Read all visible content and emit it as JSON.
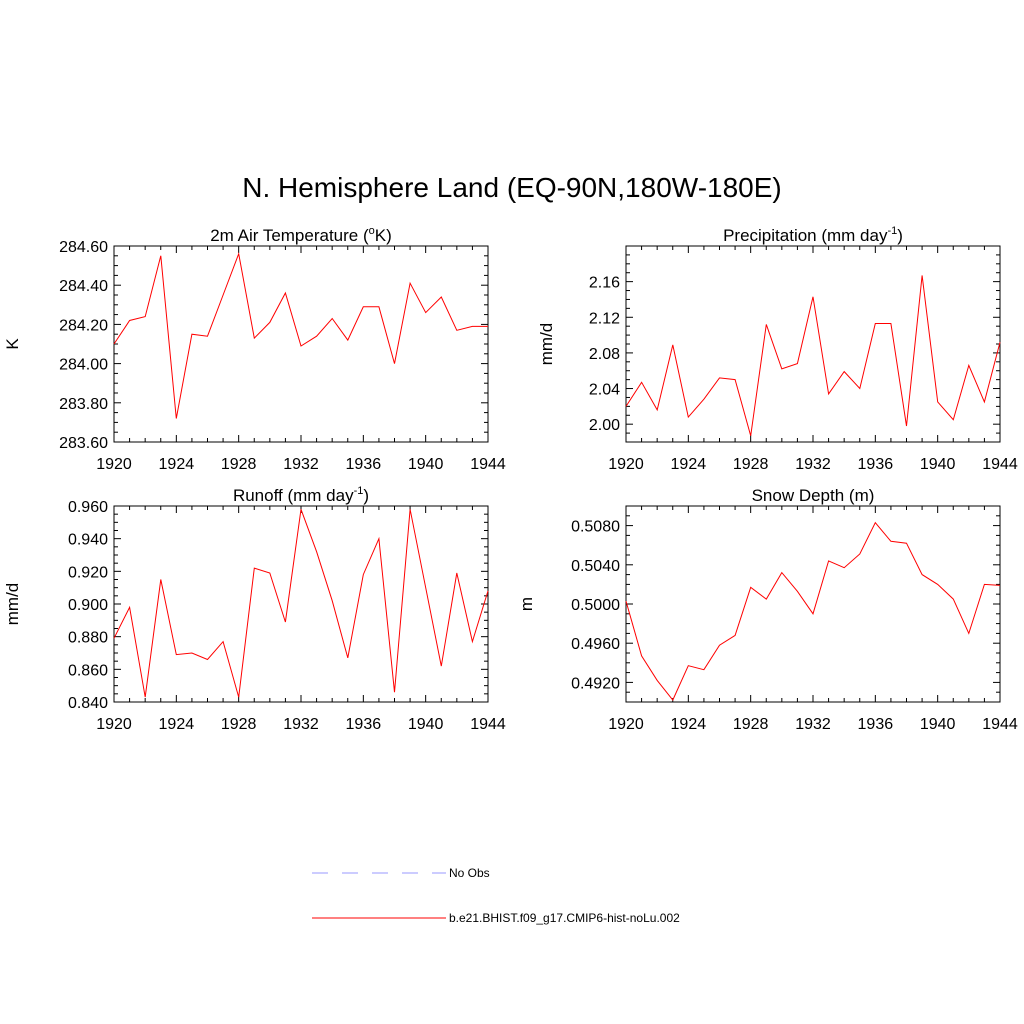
{
  "title": "N. Hemisphere Land (EQ-90N,180W-180E)",
  "legend": [
    {
      "label": "No Obs",
      "color": "#9999ff",
      "style": "dashed"
    },
    {
      "label": "b.e21.BHIST.f09_g17.CMIP6-hist-noLu.002",
      "color": "#ff0000",
      "style": "solid"
    }
  ],
  "chart_data": [
    {
      "type": "line",
      "title": "2m Air Temperature (",
      "title_sup": "o",
      "title_tail": "K)",
      "ylabel": "K",
      "xlim": [
        1920,
        1944
      ],
      "ylim": [
        283.6,
        284.6
      ],
      "xticks": [
        "1920",
        "1924",
        "1928",
        "1932",
        "1936",
        "1940",
        "1944"
      ],
      "yticks": [
        "283.60",
        "283.80",
        "284.00",
        "284.20",
        "284.40",
        "284.60"
      ],
      "series": [
        {
          "color": "#ff0000",
          "x": [
            1920,
            1921,
            1922,
            1923,
            1924,
            1925,
            1926,
            1927,
            1928,
            1929,
            1930,
            1931,
            1932,
            1933,
            1934,
            1935,
            1936,
            1937,
            1938,
            1939,
            1940,
            1941,
            1942,
            1943,
            1944
          ],
          "values": [
            284.1,
            284.22,
            284.24,
            284.55,
            283.72,
            284.15,
            284.14,
            284.35,
            284.56,
            284.13,
            284.21,
            284.36,
            284.09,
            284.14,
            284.23,
            284.12,
            284.29,
            284.29,
            284.0,
            284.41,
            284.26,
            284.34,
            284.17,
            284.19,
            284.19
          ]
        }
      ]
    },
    {
      "type": "line",
      "title": "Precipitation (mm day",
      "title_sup": "-1",
      "title_tail": ")",
      "ylabel": "mm/d",
      "xlim": [
        1920,
        1944
      ],
      "ylim": [
        1.98,
        2.2
      ],
      "xticks": [
        "1920",
        "1924",
        "1928",
        "1932",
        "1936",
        "1940",
        "1944"
      ],
      "yticks": [
        "2.00",
        "2.04",
        "2.08",
        "2.12",
        "2.16"
      ],
      "series": [
        {
          "color": "#ff0000",
          "x": [
            1920,
            1921,
            1922,
            1923,
            1924,
            1925,
            1926,
            1927,
            1928,
            1929,
            1930,
            1931,
            1932,
            1933,
            1934,
            1935,
            1936,
            1937,
            1938,
            1939,
            1940,
            1941,
            1942,
            1943,
            1944
          ],
          "values": [
            2.02,
            2.047,
            2.016,
            2.089,
            2.008,
            2.028,
            2.052,
            2.05,
            1.987,
            2.112,
            2.062,
            2.068,
            2.143,
            2.034,
            2.059,
            2.04,
            2.113,
            2.113,
            1.998,
            2.167,
            2.025,
            2.005,
            2.066,
            2.025,
            2.092
          ]
        }
      ]
    },
    {
      "type": "line",
      "title": "Runoff (mm day",
      "title_sup": "-1",
      "title_tail": ")",
      "ylabel": "mm/d",
      "xlim": [
        1920,
        1944
      ],
      "ylim": [
        0.84,
        0.96
      ],
      "xticks": [
        "1920",
        "1924",
        "1928",
        "1932",
        "1936",
        "1940",
        "1944"
      ],
      "yticks": [
        "0.840",
        "0.860",
        "0.880",
        "0.900",
        "0.920",
        "0.940",
        "0.960"
      ],
      "series": [
        {
          "color": "#ff0000",
          "x": [
            1920,
            1921,
            1922,
            1923,
            1924,
            1925,
            1926,
            1927,
            1928,
            1929,
            1930,
            1931,
            1932,
            1933,
            1934,
            1935,
            1936,
            1937,
            1938,
            1939,
            1940,
            1941,
            1942,
            1943,
            1944
          ],
          "values": [
            0.879,
            0.898,
            0.843,
            0.915,
            0.869,
            0.87,
            0.866,
            0.877,
            0.843,
            0.922,
            0.919,
            0.889,
            0.958,
            0.932,
            0.902,
            0.867,
            0.918,
            0.94,
            0.846,
            0.958,
            0.91,
            0.862,
            0.919,
            0.877,
            0.908
          ]
        }
      ]
    },
    {
      "type": "line",
      "title": "Snow Depth (m)",
      "title_sup": "",
      "title_tail": "",
      "ylabel": "m",
      "xlim": [
        1920,
        1944
      ],
      "ylim": [
        0.49,
        0.51
      ],
      "xticks": [
        "1920",
        "1924",
        "1928",
        "1932",
        "1936",
        "1940",
        "1944"
      ],
      "yticks": [
        "0.4920",
        "0.4960",
        "0.5000",
        "0.5040",
        "0.5080"
      ],
      "series": [
        {
          "color": "#ff0000",
          "x": [
            1920,
            1921,
            1922,
            1923,
            1924,
            1925,
            1926,
            1927,
            1928,
            1929,
            1930,
            1931,
            1932,
            1933,
            1934,
            1935,
            1936,
            1937,
            1938,
            1939,
            1940,
            1941,
            1942,
            1943,
            1944
          ],
          "values": [
            0.5003,
            0.4947,
            0.4922,
            0.4902,
            0.4937,
            0.4933,
            0.4958,
            0.4968,
            0.5017,
            0.5005,
            0.5032,
            0.5013,
            0.499,
            0.5044,
            0.5037,
            0.5051,
            0.5083,
            0.5064,
            0.5062,
            0.503,
            0.502,
            0.5005,
            0.497,
            0.502,
            0.5019
          ]
        }
      ]
    }
  ]
}
